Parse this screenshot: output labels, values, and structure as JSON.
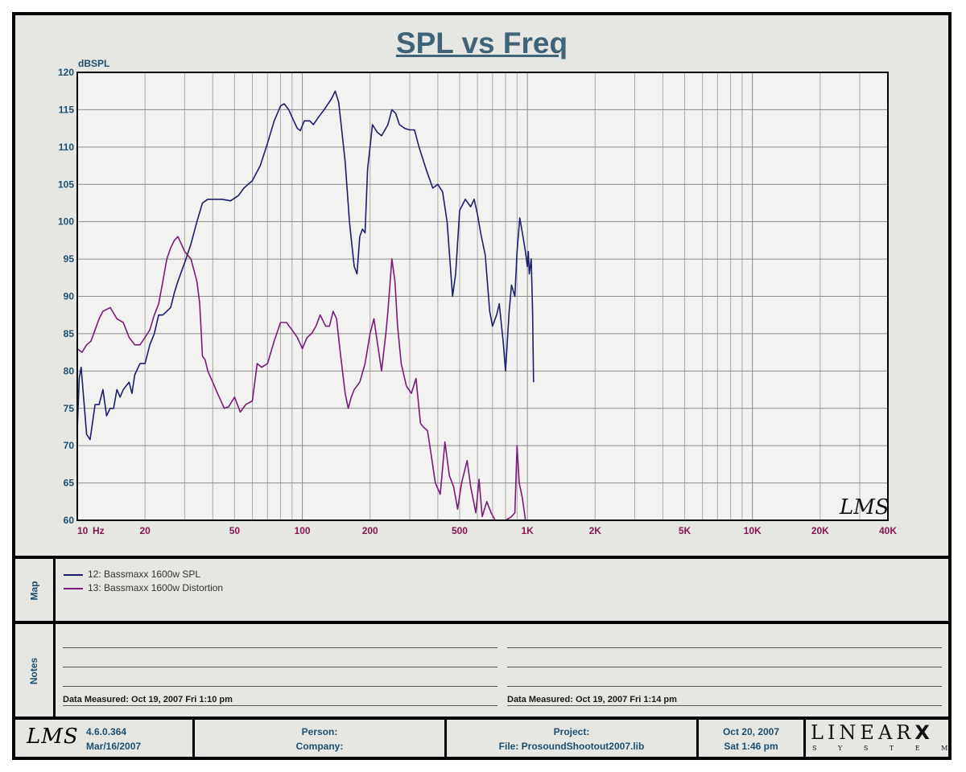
{
  "chart_data": {
    "type": "line",
    "title": "SPL vs Freq",
    "ylabel": "dBSPL",
    "xunit": "Hz",
    "xscale": "log",
    "xlim": [
      10,
      40000
    ],
    "ylim": [
      60,
      120
    ],
    "yticks": [
      120,
      115,
      110,
      105,
      100,
      95,
      90,
      85,
      80,
      75,
      70,
      65,
      60
    ],
    "xticks": [
      {
        "v": 10,
        "label": "10"
      },
      {
        "v": 20,
        "label": "20"
      },
      {
        "v": 50,
        "label": "50"
      },
      {
        "v": 100,
        "label": "100"
      },
      {
        "v": 200,
        "label": "200"
      },
      {
        "v": 500,
        "label": "500"
      },
      {
        "v": 1000,
        "label": "1K"
      },
      {
        "v": 2000,
        "label": "2K"
      },
      {
        "v": 5000,
        "label": "5K"
      },
      {
        "v": 10000,
        "label": "10K"
      },
      {
        "v": 20000,
        "label": "20K"
      },
      {
        "v": 40000,
        "label": "40K"
      }
    ],
    "grid": true,
    "watermark": "LMS",
    "series": [
      {
        "name": "12: Bassmaxx 1600w SPL",
        "color": "#1b1f6e",
        "points": [
          [
            10,
            72
          ],
          [
            10.2,
            79
          ],
          [
            10.4,
            80.5
          ],
          [
            10.7,
            76
          ],
          [
            11,
            71.5
          ],
          [
            11.4,
            70.8
          ],
          [
            12,
            75.5
          ],
          [
            12.5,
            75.5
          ],
          [
            13,
            77.5
          ],
          [
            13.5,
            74
          ],
          [
            14,
            75
          ],
          [
            14.5,
            75
          ],
          [
            15,
            77.5
          ],
          [
            15.5,
            76.5
          ],
          [
            16,
            77.5
          ],
          [
            17,
            78.5
          ],
          [
            17.5,
            77
          ],
          [
            18,
            79.5
          ],
          [
            19,
            81
          ],
          [
            20,
            81
          ],
          [
            21,
            83.5
          ],
          [
            22,
            85
          ],
          [
            23,
            87.5
          ],
          [
            24,
            87.5
          ],
          [
            25,
            88
          ],
          [
            26,
            88.5
          ],
          [
            27,
            90.5
          ],
          [
            28,
            92
          ],
          [
            30,
            94.5
          ],
          [
            32,
            97
          ],
          [
            34,
            100
          ],
          [
            36,
            102.5
          ],
          [
            38,
            103
          ],
          [
            40,
            103
          ],
          [
            44,
            103
          ],
          [
            48,
            102.8
          ],
          [
            52,
            103.5
          ],
          [
            55,
            104.5
          ],
          [
            60,
            105.5
          ],
          [
            65,
            107.5
          ],
          [
            70,
            110.5
          ],
          [
            75,
            113.5
          ],
          [
            80,
            115.5
          ],
          [
            83,
            115.8
          ],
          [
            87,
            115
          ],
          [
            90,
            114
          ],
          [
            95,
            112.5
          ],
          [
            98,
            112.2
          ],
          [
            102,
            113.5
          ],
          [
            108,
            113.5
          ],
          [
            112,
            113
          ],
          [
            118,
            114
          ],
          [
            125,
            115
          ],
          [
            135,
            116.5
          ],
          [
            140,
            117.5
          ],
          [
            145,
            116
          ],
          [
            150,
            112
          ],
          [
            155,
            108
          ],
          [
            162,
            100
          ],
          [
            170,
            94
          ],
          [
            175,
            93
          ],
          [
            180,
            98
          ],
          [
            185,
            99
          ],
          [
            190,
            98.5
          ],
          [
            195,
            107
          ],
          [
            205,
            113
          ],
          [
            215,
            112
          ],
          [
            225,
            111.5
          ],
          [
            240,
            113
          ],
          [
            250,
            115
          ],
          [
            260,
            114.5
          ],
          [
            270,
            113
          ],
          [
            285,
            112.5
          ],
          [
            300,
            112.3
          ],
          [
            315,
            112.3
          ],
          [
            330,
            110
          ],
          [
            355,
            107
          ],
          [
            380,
            104.5
          ],
          [
            400,
            105
          ],
          [
            420,
            104
          ],
          [
            440,
            100
          ],
          [
            465,
            90
          ],
          [
            480,
            93
          ],
          [
            500,
            101.5
          ],
          [
            530,
            103
          ],
          [
            560,
            102
          ],
          [
            580,
            103
          ],
          [
            600,
            101
          ],
          [
            620,
            98.5
          ],
          [
            650,
            95.5
          ],
          [
            680,
            88
          ],
          [
            700,
            86
          ],
          [
            730,
            87.5
          ],
          [
            750,
            89
          ],
          [
            780,
            84
          ],
          [
            800,
            80
          ],
          [
            830,
            88
          ],
          [
            850,
            91.5
          ],
          [
            880,
            90
          ],
          [
            900,
            96
          ],
          [
            925,
            100.5
          ],
          [
            950,
            98.5
          ],
          [
            980,
            96
          ],
          [
            1000,
            94
          ],
          [
            1010,
            96
          ],
          [
            1020,
            93
          ],
          [
            1040,
            95
          ],
          [
            1055,
            88
          ],
          [
            1065,
            78.5
          ]
        ]
      },
      {
        "name": "13: Bassmaxx 1600w Distortion",
        "color": "#7b1a78",
        "points": [
          [
            10,
            83
          ],
          [
            10.5,
            82.5
          ],
          [
            11,
            83.5
          ],
          [
            11.5,
            84
          ],
          [
            12,
            85.5
          ],
          [
            12.5,
            87
          ],
          [
            13,
            88
          ],
          [
            14,
            88.5
          ],
          [
            15,
            87
          ],
          [
            16,
            86.5
          ],
          [
            17,
            84.5
          ],
          [
            18,
            83.5
          ],
          [
            19,
            83.5
          ],
          [
            20,
            84.5
          ],
          [
            21,
            85.5
          ],
          [
            22,
            87.5
          ],
          [
            23,
            89
          ],
          [
            24,
            92
          ],
          [
            25,
            95
          ],
          [
            26,
            96.5
          ],
          [
            27,
            97.5
          ],
          [
            28,
            98
          ],
          [
            29,
            97
          ],
          [
            30,
            96
          ],
          [
            32,
            95
          ],
          [
            34,
            92
          ],
          [
            35,
            89
          ],
          [
            36,
            82
          ],
          [
            37,
            81.5
          ],
          [
            38,
            80
          ],
          [
            40,
            78.5
          ],
          [
            42,
            77
          ],
          [
            45,
            75
          ],
          [
            47,
            75.2
          ],
          [
            50,
            76.5
          ],
          [
            53,
            74.5
          ],
          [
            56,
            75.5
          ],
          [
            60,
            76
          ],
          [
            63,
            81
          ],
          [
            66,
            80.5
          ],
          [
            70,
            81
          ],
          [
            75,
            84
          ],
          [
            80,
            86.5
          ],
          [
            85,
            86.5
          ],
          [
            90,
            85.5
          ],
          [
            95,
            84.5
          ],
          [
            100,
            83
          ],
          [
            105,
            84.5
          ],
          [
            110,
            85
          ],
          [
            115,
            86
          ],
          [
            120,
            87.5
          ],
          [
            127,
            86
          ],
          [
            132,
            86
          ],
          [
            137,
            88
          ],
          [
            142,
            87
          ],
          [
            148,
            82
          ],
          [
            155,
            77
          ],
          [
            160,
            75
          ],
          [
            165,
            76.5
          ],
          [
            170,
            77.5
          ],
          [
            180,
            78.5
          ],
          [
            190,
            81
          ],
          [
            200,
            85
          ],
          [
            208,
            87
          ],
          [
            215,
            84
          ],
          [
            225,
            80
          ],
          [
            235,
            85
          ],
          [
            240,
            88
          ],
          [
            250,
            95
          ],
          [
            258,
            92
          ],
          [
            265,
            86
          ],
          [
            275,
            81
          ],
          [
            290,
            78
          ],
          [
            305,
            77
          ],
          [
            320,
            79
          ],
          [
            335,
            73
          ],
          [
            345,
            72.5
          ],
          [
            360,
            72
          ],
          [
            375,
            68.5
          ],
          [
            390,
            65
          ],
          [
            410,
            63.5
          ],
          [
            430,
            70.5
          ],
          [
            450,
            66
          ],
          [
            470,
            64.5
          ],
          [
            490,
            61.5
          ],
          [
            510,
            65
          ],
          [
            540,
            68
          ],
          [
            560,
            64.5
          ],
          [
            590,
            61
          ],
          [
            610,
            65.5
          ],
          [
            630,
            60.5
          ],
          [
            660,
            62.5
          ],
          [
            690,
            61
          ],
          [
            720,
            59.5
          ],
          [
            800,
            59.5
          ],
          [
            850,
            60.5
          ],
          [
            880,
            61
          ],
          [
            900,
            70
          ],
          [
            920,
            65
          ],
          [
            950,
            63
          ],
          [
            980,
            60
          ]
        ]
      }
    ]
  },
  "legend_group_label": "Map",
  "notes_group_label": "Notes",
  "notes": {
    "left_meta": "Data Measured: Oct 19, 2007  Fri  1:10 pm",
    "right_meta": "Data Measured: Oct 19, 2007  Fri  1:14 pm"
  },
  "footer": {
    "logo": "LMS",
    "version": "4.6.0.364",
    "version_date": "Mar/16/2007",
    "person_label": "Person:",
    "company_label": "Company:",
    "project_label": "Project:",
    "file_label": "File: ProsoundShootout2007.lib",
    "date": "Oct 20, 2007",
    "day_time": "Sat  1:46 pm",
    "brand": "LINEAR",
    "brand_x": "X",
    "brand_sub": "S Y S T E M S"
  },
  "colors": {
    "axis_label": "#1f4f6e",
    "x_tick_label": "#8a1550",
    "title": "#3f6377",
    "panel": "#e6e6e2"
  }
}
